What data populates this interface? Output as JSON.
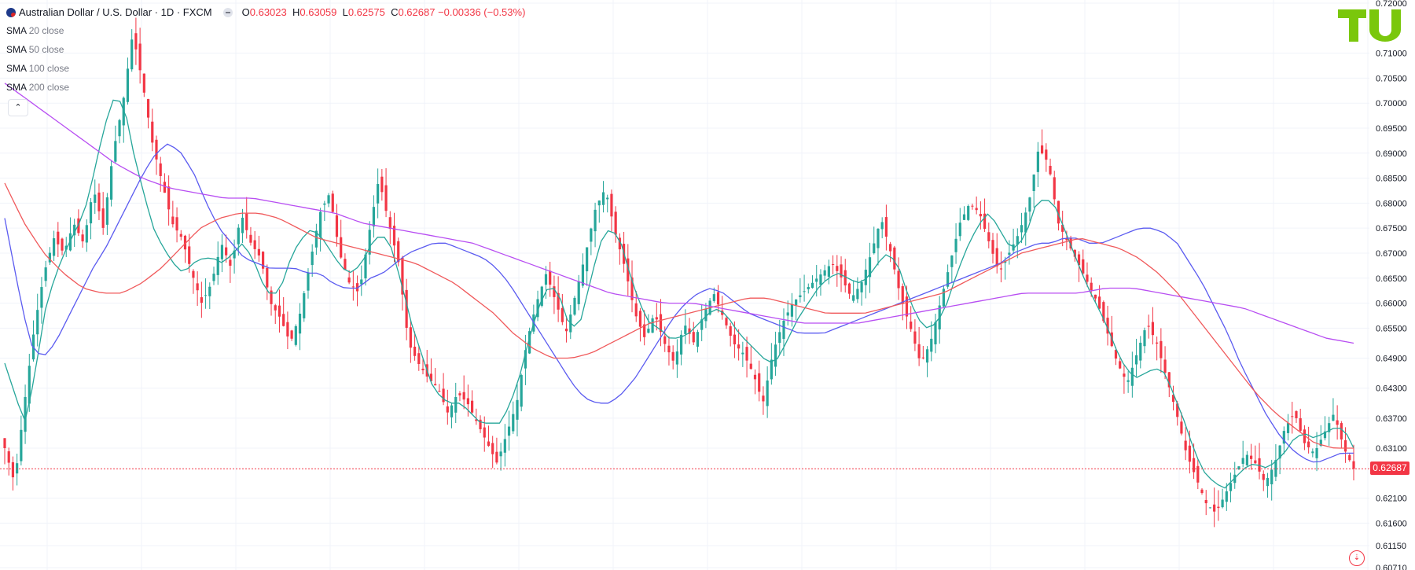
{
  "header": {
    "symbol": "Australian Dollar / U.S. Dollar · 1D · FXCM",
    "o_label": "O",
    "o_value": "0.63023",
    "h_label": "H",
    "h_value": "0.63059",
    "l_label": "L",
    "l_value": "0.62575",
    "c_label": "C",
    "c_value": "0.62687",
    "change": "−0.00336 (−0.53%)"
  },
  "indicators": [
    {
      "name": "SMA",
      "args": "20 close",
      "color": "#26a69a"
    },
    {
      "name": "SMA",
      "args": "50 close",
      "color": "#5b5bf0"
    },
    {
      "name": "SMA",
      "args": "100 close",
      "color": "#f0595b"
    },
    {
      "name": "SMA",
      "args": "200 close",
      "color": "#b84ef2"
    }
  ],
  "collapse_glyph": "⌃",
  "last_price": "0.62687",
  "colors": {
    "up": "#26a69a",
    "down": "#f23645",
    "grid": "#f0f3fa",
    "axis_text": "#131722"
  },
  "chart_data": {
    "type": "candlestick",
    "instrument": "AUDUSD",
    "interval": "1D",
    "source": "FXCM",
    "y_axis_ticks": [
      "0.72000",
      "0.71000",
      "0.70500",
      "0.70000",
      "0.69500",
      "0.69000",
      "0.68500",
      "0.68000",
      "0.67500",
      "0.67000",
      "0.66500",
      "0.66000",
      "0.65500",
      "0.64900",
      "0.64300",
      "0.63700",
      "0.63100",
      "0.62100",
      "0.61600",
      "0.61150",
      "0.60710"
    ],
    "ylim": [
      0.6071,
      0.72
    ],
    "last_price": 0.62687,
    "close_path": [
      0.631,
      0.624,
      0.64,
      0.655,
      0.666,
      0.673,
      0.67,
      0.676,
      0.672,
      0.683,
      0.675,
      0.69,
      0.7,
      0.714,
      0.704,
      0.692,
      0.684,
      0.676,
      0.673,
      0.666,
      0.66,
      0.664,
      0.672,
      0.667,
      0.678,
      0.672,
      0.669,
      0.66,
      0.657,
      0.652,
      0.658,
      0.668,
      0.678,
      0.682,
      0.67,
      0.664,
      0.662,
      0.674,
      0.685,
      0.676,
      0.668,
      0.652,
      0.648,
      0.645,
      0.643,
      0.638,
      0.642,
      0.64,
      0.636,
      0.632,
      0.628,
      0.634,
      0.64,
      0.652,
      0.66,
      0.666,
      0.66,
      0.654,
      0.662,
      0.67,
      0.679,
      0.683,
      0.674,
      0.667,
      0.658,
      0.653,
      0.658,
      0.652,
      0.648,
      0.656,
      0.652,
      0.658,
      0.662,
      0.657,
      0.652,
      0.65,
      0.646,
      0.64,
      0.65,
      0.656,
      0.66,
      0.662,
      0.664,
      0.666,
      0.668,
      0.665,
      0.661,
      0.664,
      0.67,
      0.677,
      0.67,
      0.661,
      0.655,
      0.648,
      0.652,
      0.66,
      0.668,
      0.676,
      0.68,
      0.678,
      0.672,
      0.666,
      0.67,
      0.674,
      0.68,
      0.691,
      0.688,
      0.676,
      0.672,
      0.668,
      0.664,
      0.66,
      0.654,
      0.648,
      0.644,
      0.65,
      0.656,
      0.652,
      0.645,
      0.638,
      0.63,
      0.625,
      0.62,
      0.618,
      0.622,
      0.626,
      0.63,
      0.628,
      0.624,
      0.628,
      0.635,
      0.638,
      0.632,
      0.63,
      0.634,
      0.638,
      0.631,
      0.6269
    ],
    "sma_paths": {
      "SMA 20": [
        0.648,
        0.642,
        0.636,
        0.645,
        0.658,
        0.665,
        0.67,
        0.674,
        0.678,
        0.686,
        0.695,
        0.701,
        0.7,
        0.69,
        0.682,
        0.675,
        0.671,
        0.668,
        0.666,
        0.668,
        0.669,
        0.669,
        0.668,
        0.67,
        0.672,
        0.669,
        0.664,
        0.661,
        0.664,
        0.67,
        0.673,
        0.675,
        0.673,
        0.67,
        0.667,
        0.666,
        0.668,
        0.672,
        0.674,
        0.671,
        0.664,
        0.656,
        0.65,
        0.644,
        0.641,
        0.64,
        0.64,
        0.638,
        0.636,
        0.636,
        0.636,
        0.64,
        0.646,
        0.654,
        0.66,
        0.664,
        0.661,
        0.655,
        0.656,
        0.664,
        0.672,
        0.675,
        0.673,
        0.666,
        0.66,
        0.656,
        0.655,
        0.653,
        0.653,
        0.654,
        0.656,
        0.658,
        0.659,
        0.657,
        0.654,
        0.652,
        0.65,
        0.648,
        0.649,
        0.653,
        0.657,
        0.66,
        0.663,
        0.665,
        0.666,
        0.665,
        0.664,
        0.665,
        0.668,
        0.67,
        0.668,
        0.662,
        0.657,
        0.655,
        0.656,
        0.66,
        0.666,
        0.671,
        0.675,
        0.678,
        0.676,
        0.672,
        0.671,
        0.674,
        0.68,
        0.681,
        0.679,
        0.674,
        0.669,
        0.664,
        0.66,
        0.656,
        0.651,
        0.647,
        0.645,
        0.646,
        0.647,
        0.646,
        0.641,
        0.636,
        0.63,
        0.626,
        0.624,
        0.623,
        0.625,
        0.627,
        0.628,
        0.627,
        0.628,
        0.63,
        0.633,
        0.634,
        0.633,
        0.634,
        0.635,
        0.635,
        0.631
      ],
      "SMA 50": [
        0.677,
        0.664,
        0.652,
        0.649,
        0.652,
        0.657,
        0.662,
        0.667,
        0.671,
        0.676,
        0.681,
        0.686,
        0.69,
        0.692,
        0.69,
        0.686,
        0.68,
        0.675,
        0.672,
        0.669,
        0.668,
        0.667,
        0.667,
        0.667,
        0.666,
        0.666,
        0.664,
        0.663,
        0.663,
        0.665,
        0.666,
        0.668,
        0.67,
        0.671,
        0.672,
        0.672,
        0.671,
        0.67,
        0.669,
        0.667,
        0.664,
        0.66,
        0.656,
        0.652,
        0.648,
        0.644,
        0.641,
        0.64,
        0.64,
        0.642,
        0.645,
        0.649,
        0.653,
        0.657,
        0.66,
        0.662,
        0.663,
        0.662,
        0.66,
        0.658,
        0.657,
        0.656,
        0.655,
        0.654,
        0.654,
        0.654,
        0.655,
        0.656,
        0.657,
        0.658,
        0.659,
        0.66,
        0.661,
        0.662,
        0.663,
        0.664,
        0.665,
        0.666,
        0.667,
        0.668,
        0.67,
        0.671,
        0.672,
        0.672,
        0.673,
        0.673,
        0.672,
        0.672,
        0.673,
        0.674,
        0.675,
        0.675,
        0.674,
        0.672,
        0.668,
        0.664,
        0.659,
        0.654,
        0.648,
        0.643,
        0.638,
        0.634,
        0.631,
        0.629,
        0.628,
        0.629,
        0.63,
        0.63
      ],
      "SMA 100": [
        0.684,
        0.676,
        0.67,
        0.666,
        0.663,
        0.662,
        0.662,
        0.664,
        0.667,
        0.671,
        0.675,
        0.677,
        0.678,
        0.678,
        0.677,
        0.675,
        0.673,
        0.672,
        0.671,
        0.67,
        0.669,
        0.668,
        0.666,
        0.664,
        0.661,
        0.658,
        0.654,
        0.651,
        0.649,
        0.649,
        0.65,
        0.652,
        0.654,
        0.656,
        0.657,
        0.658,
        0.659,
        0.66,
        0.661,
        0.661,
        0.66,
        0.659,
        0.658,
        0.658,
        0.658,
        0.659,
        0.66,
        0.661,
        0.662,
        0.664,
        0.666,
        0.668,
        0.67,
        0.671,
        0.672,
        0.673,
        0.672,
        0.671,
        0.669,
        0.666,
        0.662,
        0.657,
        0.652,
        0.647,
        0.642,
        0.638,
        0.635,
        0.632,
        0.631,
        0.631
      ],
      "SMA 200": [
        0.704,
        0.7,
        0.696,
        0.692,
        0.688,
        0.685,
        0.683,
        0.682,
        0.681,
        0.681,
        0.68,
        0.679,
        0.678,
        0.676,
        0.675,
        0.674,
        0.673,
        0.672,
        0.67,
        0.668,
        0.666,
        0.664,
        0.662,
        0.661,
        0.66,
        0.66,
        0.659,
        0.658,
        0.657,
        0.656,
        0.656,
        0.656,
        0.657,
        0.658,
        0.659,
        0.66,
        0.661,
        0.662,
        0.662,
        0.662,
        0.663,
        0.663,
        0.662,
        0.661,
        0.66,
        0.659,
        0.657,
        0.655,
        0.653,
        0.652
      ]
    }
  }
}
